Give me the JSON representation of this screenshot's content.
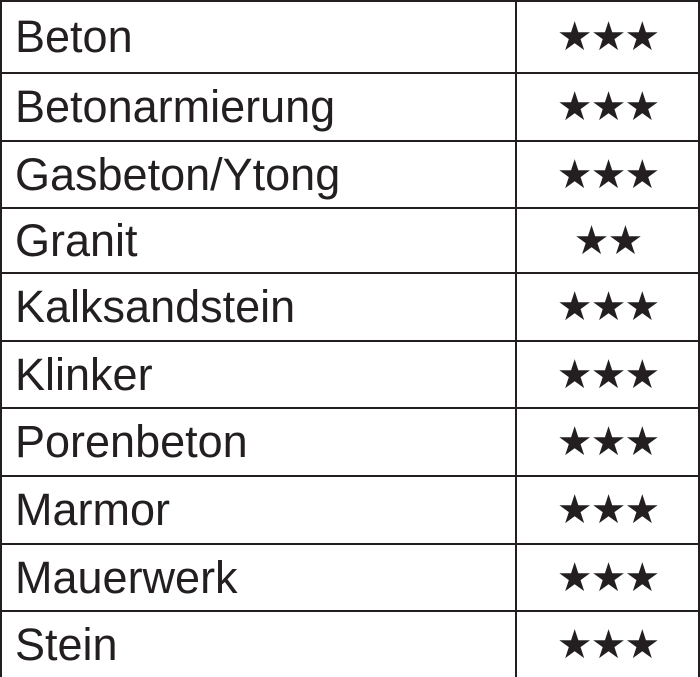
{
  "colors": {
    "ink": "#231f20",
    "background": "#ffffff"
  },
  "rating_icon": "star-icon",
  "rows": [
    {
      "material": "Beton",
      "stars": 3
    },
    {
      "material": "Betonarmierung",
      "stars": 3
    },
    {
      "material": "Gasbeton/Ytong",
      "stars": 3
    },
    {
      "material": "Granit",
      "stars": 2
    },
    {
      "material": "Kalksandstein",
      "stars": 3
    },
    {
      "material": "Klinker",
      "stars": 3
    },
    {
      "material": "Porenbeton",
      "stars": 3
    },
    {
      "material": "Marmor",
      "stars": 3
    },
    {
      "material": "Mauerwerk",
      "stars": 3
    },
    {
      "material": "Stein",
      "stars": 3
    }
  ]
}
